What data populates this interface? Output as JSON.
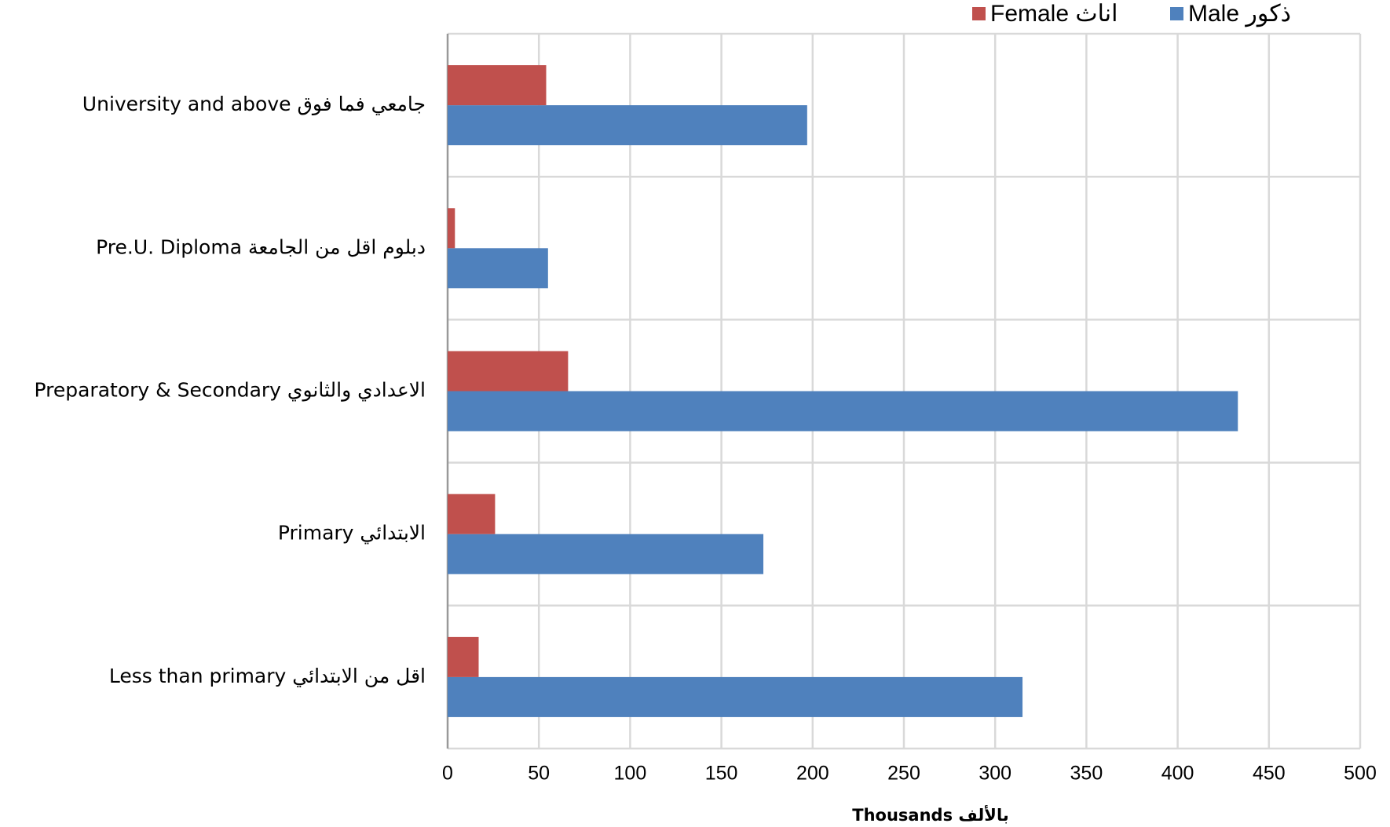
{
  "chart_data": {
    "type": "barh",
    "categories": [
      "University and above جامعي فما فوق",
      "Pre.U. Diploma دبلوم اقل من الجامعة",
      "Preparatory & Secondary  الاعدادي والثانوي",
      "Primary  الابتدائي",
      "Less than primary اقل من الابتدائي"
    ],
    "series": [
      {
        "name": "Male ذكور",
        "color": "#4f81bd",
        "values": [
          197,
          55,
          433,
          173,
          315
        ]
      },
      {
        "name": "Female اناث",
        "color": "#c0504d",
        "values": [
          54,
          4,
          66,
          26,
          17
        ]
      }
    ],
    "xlabel": "Thousands  بالألف",
    "xlim": [
      0,
      500
    ],
    "xticks": [
      0,
      50,
      100,
      150,
      200,
      250,
      300,
      350,
      400,
      450,
      500
    ],
    "grid": true,
    "legend": "top-right"
  }
}
